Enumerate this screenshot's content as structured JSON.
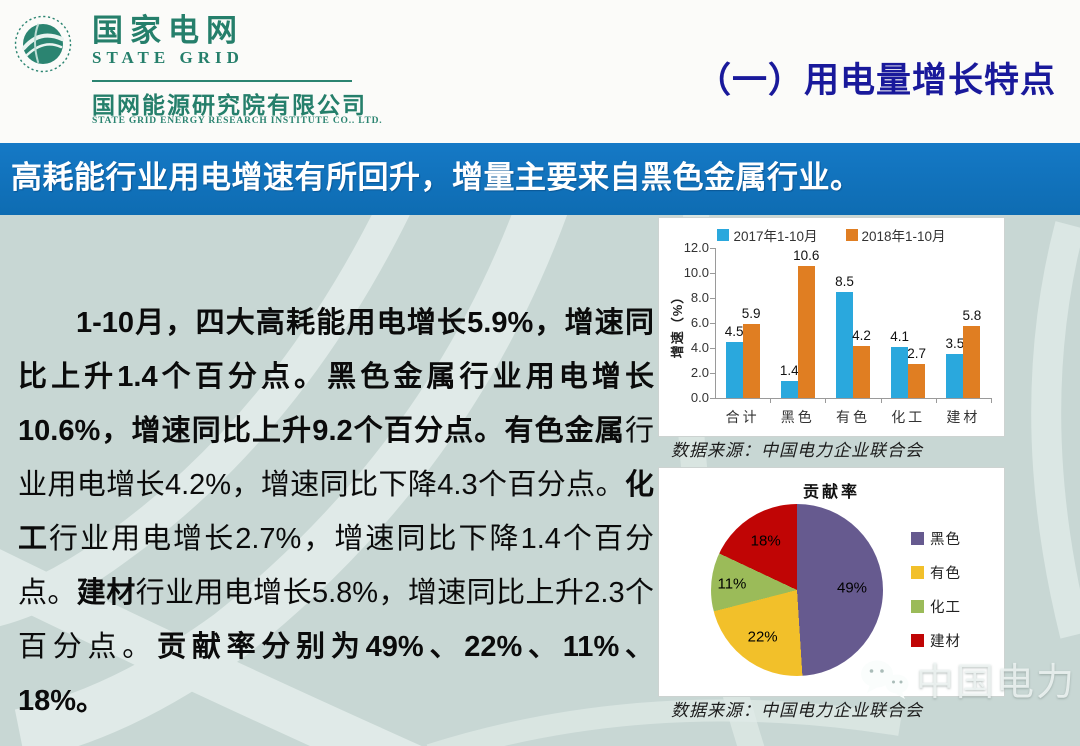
{
  "header": {
    "logo": {
      "cn_name": "国家电网",
      "en_name": "STATE GRID",
      "subsidiary_cn": "国网能源研究院有限公司",
      "subsidiary_en": "STATE GRID ENERGY RESEARCH INSTITUTE CO.. LTD.",
      "brand_color": "#257f6b"
    },
    "section_title": "（一）用电量增长特点",
    "section_title_color": "#19199b"
  },
  "banner": {
    "text": "高耗能行业用电增速有所回升，增量主要来自黑色金属行业。",
    "bg_color": "#1072bc"
  },
  "paragraph": {
    "segments": [
      {
        "text": "1-10月，四大高耗能用电增长5.9%，增速同比上升1.4个百分点。黑色金属行业用电增长10.6%，增速同比上升9.2个百分点。有色金属",
        "bold": true
      },
      {
        "text": "行业用电增长4.2%，增速同比下降4.3个百分点。",
        "bold": false
      },
      {
        "text": "化工",
        "bold": true
      },
      {
        "text": "行业用电增长2.7%，增速同比下降1.4个百分点。",
        "bold": false
      },
      {
        "text": "建材",
        "bold": true
      },
      {
        "text": "行业用电增长5.8%，增速同比上升2.3个百分点。",
        "bold": false
      },
      {
        "text": "贡献率分别为49%、22%、11%、18%。",
        "bold": true
      }
    ]
  },
  "chart_data": [
    {
      "type": "bar",
      "title": "",
      "categories": [
        "合计",
        "黑色",
        "有色",
        "化工",
        "建材"
      ],
      "series": [
        {
          "name": "2017年1-10月",
          "color": "#2aa8dd",
          "values": [
            4.5,
            1.4,
            8.5,
            4.1,
            3.5
          ]
        },
        {
          "name": "2018年1-10月",
          "color": "#e07e22",
          "values": [
            5.9,
            10.6,
            4.2,
            2.7,
            5.8
          ]
        }
      ],
      "xlabel": "",
      "ylabel": "增速（%）",
      "ylim": [
        0,
        12
      ],
      "ytick_labels": [
        "0.0",
        "2.0",
        "4.0",
        "6.0",
        "8.0",
        "10.0",
        "12.0"
      ],
      "grid": false,
      "legend_position": "top",
      "data_labels": true
    },
    {
      "type": "pie",
      "title": "贡献率",
      "labels": [
        "黑色",
        "有色",
        "化工",
        "建材"
      ],
      "values": [
        49,
        22,
        11,
        18
      ],
      "slice_labels": [
        "49%",
        "22%",
        "11%",
        "18%"
      ],
      "colors": [
        "#665a8f",
        "#f2c02a",
        "#9bbb59",
        "#c00505"
      ],
      "legend_position": "right",
      "start_angle_deg": 0,
      "direction": "clockwise"
    }
  ],
  "sources": {
    "bar_chart": "数据来源：中国电力企业联合会",
    "pie_chart": "数据来源：中国电力企业联合会"
  },
  "watermark": {
    "text": "中国电力"
  }
}
